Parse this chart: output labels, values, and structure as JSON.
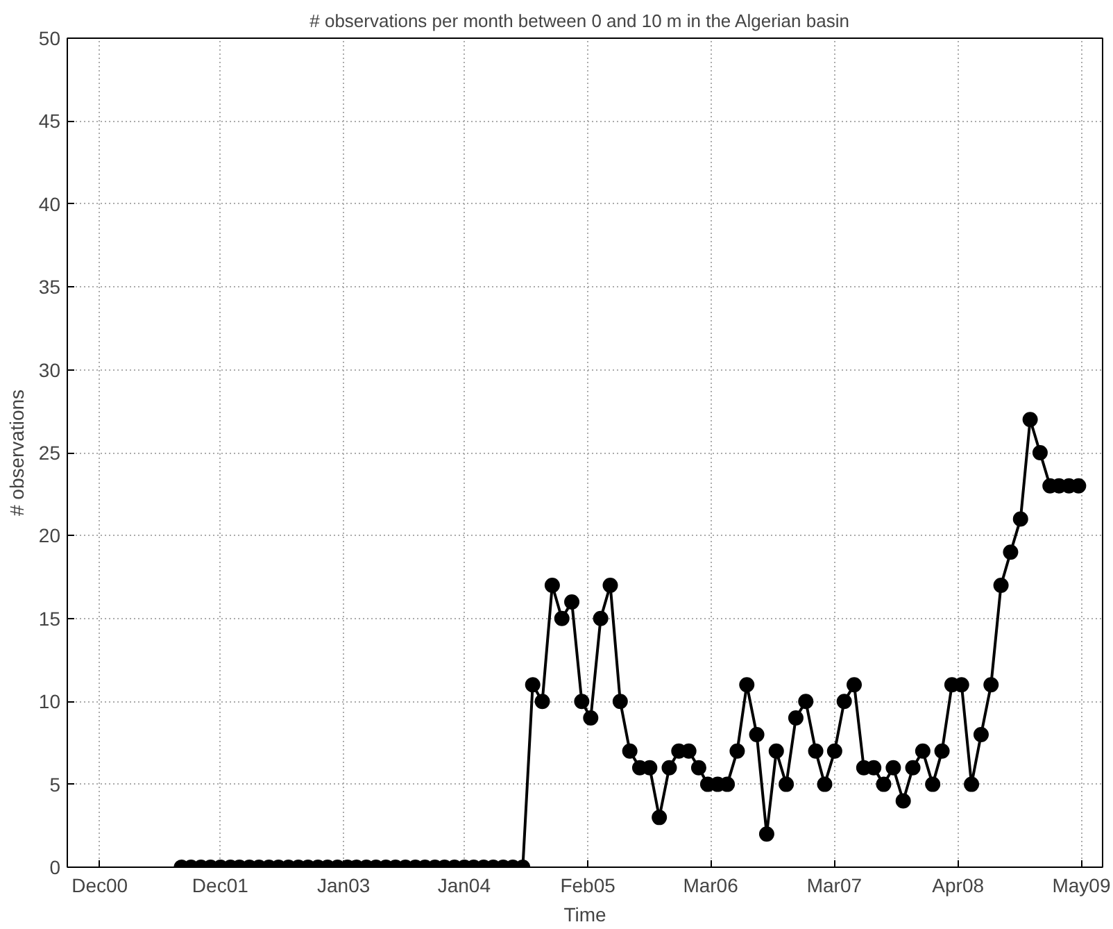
{
  "chart_data": {
    "type": "line",
    "title": "# observations per month between 0 and 10 m in the  Algerian  basin",
    "xlabel": "Time",
    "ylabel": "# observations",
    "x": [
      "2001-09",
      "2001-10",
      "2001-11",
      "2001-12",
      "2002-01",
      "2002-02",
      "2002-03",
      "2002-04",
      "2002-05",
      "2002-06",
      "2002-07",
      "2002-08",
      "2002-09",
      "2002-10",
      "2002-11",
      "2002-12",
      "2003-01",
      "2003-02",
      "2003-03",
      "2003-04",
      "2003-05",
      "2003-06",
      "2003-07",
      "2003-08",
      "2003-09",
      "2003-10",
      "2003-11",
      "2003-12",
      "2004-01",
      "2004-02",
      "2004-03",
      "2004-04",
      "2004-05",
      "2004-06",
      "2004-07",
      "2004-08",
      "2004-09",
      "2004-10",
      "2004-11",
      "2004-12",
      "2005-01",
      "2005-02",
      "2005-03",
      "2005-04",
      "2005-05",
      "2005-06",
      "2005-07",
      "2005-08",
      "2005-09",
      "2005-10",
      "2005-11",
      "2005-12",
      "2006-01",
      "2006-02",
      "2006-03",
      "2006-04",
      "2006-05",
      "2006-06",
      "2006-07",
      "2006-08",
      "2006-09",
      "2006-10",
      "2006-11",
      "2006-12",
      "2007-01",
      "2007-02",
      "2007-03",
      "2007-04",
      "2007-05",
      "2007-06",
      "2007-07",
      "2007-08",
      "2007-09",
      "2007-10",
      "2007-11",
      "2007-12",
      "2008-01",
      "2008-02",
      "2008-03",
      "2008-04",
      "2008-05",
      "2008-06",
      "2008-07",
      "2008-08",
      "2008-09",
      "2008-10",
      "2008-11",
      "2008-12",
      "2009-01",
      "2009-02",
      "2009-03",
      "2009-04",
      "2009-05"
    ],
    "series": [
      {
        "color": "#000000",
        "values": [
          0,
          0,
          0,
          0,
          0,
          0,
          0,
          0,
          0,
          0,
          0,
          0,
          0,
          0,
          0,
          0,
          0,
          0,
          0,
          0,
          0,
          0,
          0,
          0,
          0,
          0,
          0,
          0,
          0,
          0,
          0,
          0,
          0,
          0,
          0,
          0,
          11,
          10,
          17,
          15,
          16,
          10,
          9,
          15,
          17,
          10,
          7,
          6,
          6,
          3,
          6,
          7,
          7,
          6,
          5,
          5,
          5,
          7,
          11,
          8,
          2,
          7,
          5,
          9,
          10,
          7,
          5,
          7,
          10,
          11,
          6,
          6,
          5,
          6,
          4,
          6,
          7,
          5,
          7,
          11,
          11,
          5,
          8,
          11,
          17,
          19,
          21,
          27,
          25,
          23,
          23,
          23,
          23
        ]
      }
    ],
    "xlim": [
      "2000-09-10",
      "2009-07-15"
    ],
    "xticks": [
      {
        "value": "2000-12-20",
        "label": "Dec00"
      },
      {
        "value": "2001-12-31",
        "label": "Dec01"
      },
      {
        "value": "2003-01-20",
        "label": "Jan03"
      },
      {
        "value": "2004-01-31",
        "label": "Jan04"
      },
      {
        "value": "2005-02-20",
        "label": "Feb05"
      },
      {
        "value": "2006-03-10",
        "label": "Mar06"
      },
      {
        "value": "2007-03-31",
        "label": "Mar07"
      },
      {
        "value": "2008-04-20",
        "label": "Apr08"
      },
      {
        "value": "2009-05-10",
        "label": "May09"
      }
    ],
    "ylim": [
      0,
      50
    ],
    "yticks": [
      0,
      5,
      10,
      15,
      20,
      25,
      30,
      35,
      40,
      45,
      50
    ],
    "grid": true,
    "marker": "circle",
    "line_style": "solid"
  }
}
